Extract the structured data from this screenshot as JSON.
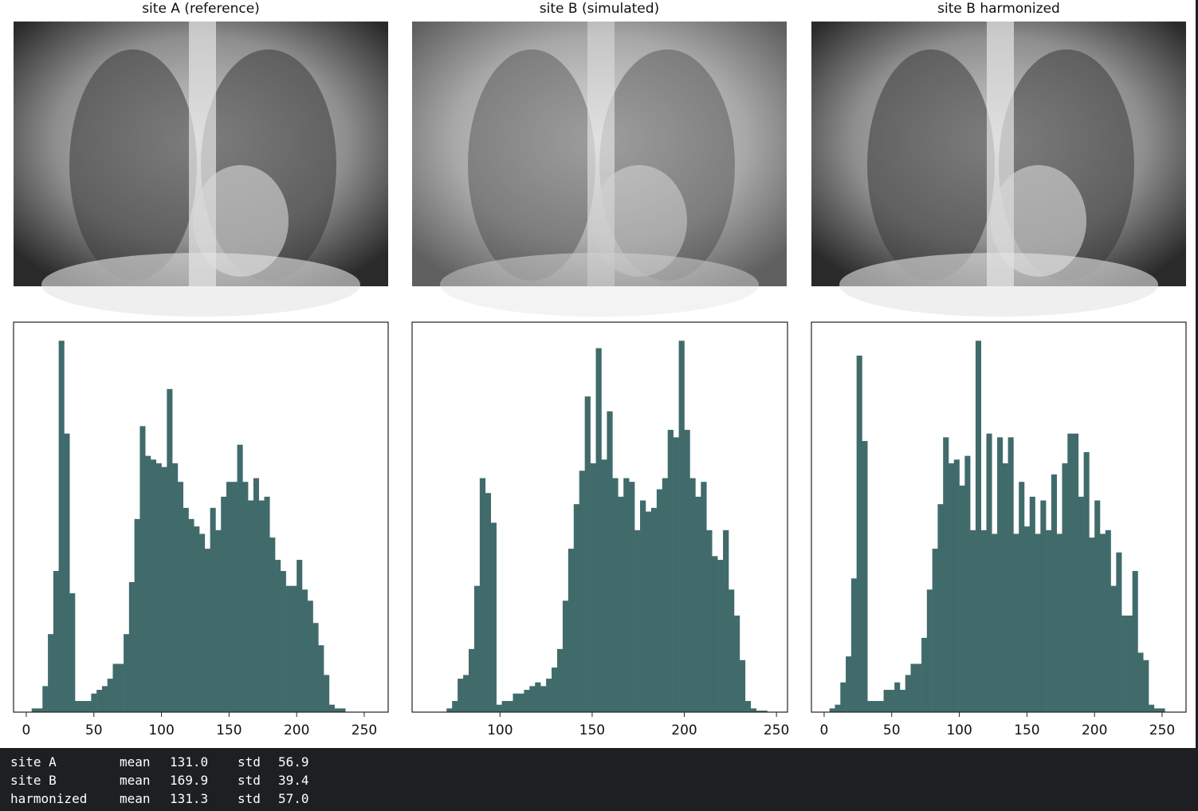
{
  "images": [
    {
      "title": "site A (reference)"
    },
    {
      "title": "site B (simulated)"
    },
    {
      "title": "site B harmonized"
    }
  ],
  "chart_data": [
    {
      "type": "histogram",
      "color": "#416b6b",
      "bins": [
        0,
        4,
        8,
        12,
        16,
        20,
        24,
        28,
        32,
        36,
        40,
        44,
        48,
        52,
        56,
        60,
        64,
        68,
        72,
        76,
        80,
        84,
        88,
        92,
        96,
        100,
        104,
        108,
        112,
        116,
        120,
        124,
        128,
        132,
        136,
        140,
        144,
        148,
        152,
        156,
        160,
        164,
        168,
        172,
        176,
        180,
        184,
        188,
        192,
        196,
        200,
        204,
        208,
        212,
        216,
        220,
        224,
        228,
        232,
        236,
        240,
        244,
        248,
        252,
        256
      ],
      "counts": [
        0,
        1,
        1,
        7,
        21,
        38,
        100,
        75,
        32,
        3,
        3,
        3,
        5,
        6,
        7,
        9,
        13,
        13,
        21,
        35,
        52,
        77,
        69,
        68,
        67,
        66,
        87,
        67,
        62,
        55,
        52,
        50,
        48,
        44,
        55,
        49,
        58,
        62,
        62,
        72,
        62,
        57,
        63,
        57,
        58,
        47,
        41,
        38,
        34,
        34,
        41,
        33,
        30,
        24,
        18,
        10,
        2,
        1,
        1,
        0,
        0,
        0,
        0,
        0
      ],
      "xlim": [
        -9.4,
        267.7
      ],
      "ylim": [
        0,
        105
      ],
      "xticks": [
        0,
        50,
        100,
        150,
        200,
        250
      ]
    },
    {
      "type": "histogram",
      "color": "#416b6b",
      "bins": [
        71,
        74,
        77,
        80,
        83,
        86,
        89,
        92,
        95,
        98,
        101,
        104,
        107,
        110,
        113,
        116,
        119,
        122,
        125,
        128,
        131,
        134,
        137,
        140,
        143,
        146,
        149,
        152,
        155,
        158,
        161,
        164,
        167,
        170,
        173,
        176,
        179,
        182,
        185,
        188,
        191,
        194,
        197,
        200,
        203,
        206,
        209,
        212,
        215,
        218,
        221,
        224,
        227,
        230,
        233,
        236,
        239,
        242,
        245
      ],
      "counts": [
        1,
        3,
        9,
        10,
        17,
        34,
        63,
        59,
        51,
        2,
        3,
        3,
        5,
        5,
        6,
        7,
        8,
        7,
        9,
        12,
        17,
        30,
        44,
        56,
        65,
        85,
        67,
        98,
        68,
        81,
        63,
        58,
        63,
        62,
        49,
        57,
        54,
        55,
        60,
        63,
        76,
        74,
        100,
        76,
        63,
        58,
        62,
        49,
        42,
        41,
        49,
        33,
        26,
        14,
        3,
        1,
        0.4,
        0.4
      ],
      "xlim": [
        52.3,
        256
      ],
      "ylim": [
        0,
        105
      ],
      "xticks": [
        100,
        150,
        200,
        250
      ]
    },
    {
      "type": "histogram",
      "color": "#416b6b",
      "bins": [
        0,
        4,
        8,
        12,
        16,
        20,
        24,
        28,
        32,
        36,
        40,
        44,
        48,
        52,
        56,
        60,
        64,
        68,
        72,
        76,
        80,
        84,
        88,
        92,
        96,
        100,
        104,
        108,
        112,
        116,
        120,
        124,
        128,
        132,
        136,
        140,
        144,
        148,
        152,
        156,
        160,
        164,
        168,
        172,
        176,
        180,
        184,
        188,
        192,
        196,
        200,
        204,
        208,
        212,
        216,
        220,
        224,
        228,
        232,
        236,
        240,
        244,
        248,
        252,
        256
      ],
      "counts": [
        0,
        1,
        2,
        8,
        15,
        36,
        96,
        73,
        3,
        3,
        3,
        6,
        6,
        8,
        6,
        10,
        13,
        13,
        20,
        33,
        44,
        56,
        74,
        67,
        68,
        61,
        69,
        49,
        100,
        49,
        75,
        48,
        74,
        67,
        74,
        48,
        62,
        50,
        58,
        48,
        57,
        49,
        64,
        48,
        67,
        75,
        75,
        58,
        70,
        47,
        57,
        48,
        49,
        34,
        43,
        26,
        26,
        38,
        16,
        14,
        2,
        1,
        1,
        0
      ],
      "xlim": [
        -9.4,
        267.7
      ],
      "ylim": [
        0,
        105
      ],
      "xticks": [
        0,
        50,
        100,
        150,
        200,
        250
      ]
    }
  ],
  "console": {
    "rows": [
      [
        "site A",
        "mean",
        "131.0",
        "std",
        "56.9"
      ],
      [
        "site B",
        "mean",
        "169.9",
        "std",
        "39.4"
      ],
      [
        "harmonized",
        "mean",
        "131.3",
        "std",
        "57.0"
      ]
    ]
  }
}
